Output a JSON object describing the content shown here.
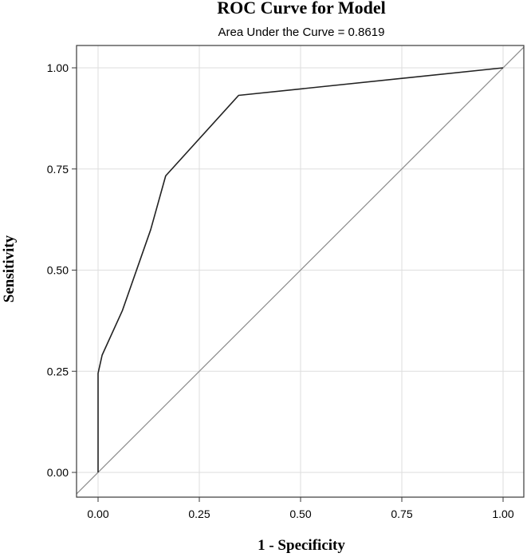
{
  "chart_data": {
    "type": "line",
    "title": "ROC Curve for Model",
    "subtitle": "Area Under the Curve = 0.8619",
    "xlabel": "1 - Specificity",
    "ylabel": "Sensitivity",
    "xlim": [
      0,
      1
    ],
    "ylim": [
      0,
      1
    ],
    "xticks": [
      0.0,
      0.25,
      0.5,
      0.75,
      1.0
    ],
    "yticks": [
      0.0,
      0.25,
      0.5,
      0.75,
      1.0
    ],
    "xtick_labels": [
      "0.00",
      "0.25",
      "0.50",
      "0.75",
      "1.00"
    ],
    "ytick_labels": [
      "0.00",
      "0.25",
      "0.50",
      "0.75",
      "1.00"
    ],
    "grid": true,
    "series": [
      {
        "x": [
          0.0,
          0.0,
          0.01,
          0.06,
          0.13,
          0.167,
          0.347,
          1.0
        ],
        "y": [
          0.0,
          0.245,
          0.29,
          0.4,
          0.6,
          0.733,
          0.932,
          1.0
        ]
      },
      {
        "x": [
          0.0,
          1.0
        ],
        "y": [
          0.0,
          1.0
        ]
      }
    ],
    "colors": {
      "curve": "#222222",
      "diagonal": "#8c8c8c",
      "grid": "#dedede",
      "frame": "#3a3a3a"
    }
  }
}
